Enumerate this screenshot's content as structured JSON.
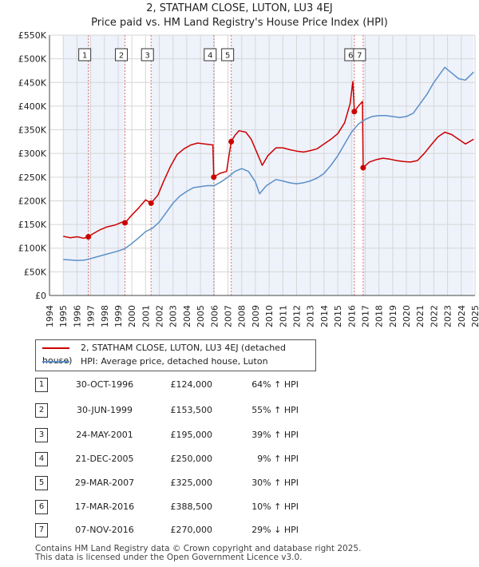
{
  "title": "2, STATHAM CLOSE, LUTON, LU3 4EJ",
  "subtitle": "Price paid vs. HM Land Registry's House Price Index (HPI)",
  "colors": {
    "property": "#cc0000",
    "hpi": "#5b8fc8",
    "sale_shade": "#dde6f3",
    "vline": "#e07070",
    "grid": "#d6d6d6",
    "plot_bg": "#eef2fa"
  },
  "legend": {
    "property_label": "2, STATHAM CLOSE, LUTON, LU3 4EJ (detached house)",
    "hpi_label": "HPI: Average price, detached house, Luton"
  },
  "sales": [
    {
      "num": "1",
      "date": "30-OCT-1996",
      "price": "£124,000",
      "hpi": "64% ↑ HPI"
    },
    {
      "num": "2",
      "date": "30-JUN-1999",
      "price": "£153,500",
      "hpi": "55% ↑ HPI"
    },
    {
      "num": "3",
      "date": "24-MAY-2001",
      "price": "£195,000",
      "hpi": "39% ↑ HPI"
    },
    {
      "num": "4",
      "date": "21-DEC-2005",
      "price": "£250,000",
      "hpi": "9% ↑ HPI"
    },
    {
      "num": "5",
      "date": "29-MAR-2007",
      "price": "£325,000",
      "hpi": "30% ↑ HPI"
    },
    {
      "num": "6",
      "date": "17-MAR-2016",
      "price": "£388,500",
      "hpi": "10% ↑ HPI"
    },
    {
      "num": "7",
      "date": "07-NOV-2016",
      "price": "£270,000",
      "hpi": "29% ↓ HPI"
    }
  ],
  "footer": {
    "line1": "Contains HM Land Registry data © Crown copyright and database right 2025.",
    "line2": "This data is licensed under the Open Government Licence v3.0."
  },
  "chart_data": {
    "type": "line",
    "title": "2, STATHAM CLOSE, LUTON, LU3 4EJ",
    "subtitle": "Price paid vs. HM Land Registry's House Price Index (HPI)",
    "xlabel": "",
    "ylabel": "",
    "xlim": [
      1994,
      2025
    ],
    "ylim": [
      0,
      550000
    ],
    "x_ticks": [
      1994,
      1995,
      1996,
      1997,
      1998,
      1999,
      2000,
      2001,
      2002,
      2003,
      2004,
      2005,
      2006,
      2007,
      2008,
      2009,
      2010,
      2011,
      2012,
      2013,
      2014,
      2015,
      2016,
      2017,
      2018,
      2019,
      2020,
      2021,
      2022,
      2023,
      2024,
      2025
    ],
    "x_tick_labels": [
      "1994",
      "1995",
      "1996",
      "1997",
      "1998",
      "1999",
      "2000",
      "2001",
      "2002",
      "2003",
      "2004",
      "2005",
      "2006",
      "2007",
      "2008",
      "2009",
      "2010",
      "2011",
      "2012",
      "2013",
      "2014",
      "2015",
      "2016",
      "2017",
      "2018",
      "2019",
      "2020",
      "2021",
      "2022",
      "2023",
      "2024",
      "2025"
    ],
    "y_ticks": [
      0,
      50000,
      100000,
      150000,
      200000,
      250000,
      300000,
      350000,
      400000,
      450000,
      500000,
      550000
    ],
    "y_tick_labels": [
      "£0",
      "£50K",
      "£100K",
      "£150K",
      "£200K",
      "£250K",
      "£300K",
      "£350K",
      "£400K",
      "£450K",
      "£500K",
      "£550K"
    ],
    "grid": true,
    "legend_position": "below chart",
    "data_range": [
      1995.0,
      2024.9
    ],
    "sale_markers": [
      {
        "label": "1",
        "x": 1996.83,
        "y": 124000
      },
      {
        "label": "2",
        "x": 1999.5,
        "y": 153500
      },
      {
        "label": "3",
        "x": 2001.4,
        "y": 195000
      },
      {
        "label": "4",
        "x": 2005.97,
        "y": 250000
      },
      {
        "label": "5",
        "x": 2007.24,
        "y": 325000
      },
      {
        "label": "6",
        "x": 2016.21,
        "y": 388500
      },
      {
        "label": "7",
        "x": 2016.85,
        "y": 270000
      }
    ],
    "series": [
      {
        "name": "2, STATHAM CLOSE, LUTON, LU3 4EJ (detached house)",
        "color": "#cc0000",
        "points": [
          [
            1995.0,
            125000
          ],
          [
            1995.5,
            122000
          ],
          [
            1996.0,
            124000
          ],
          [
            1996.5,
            121000
          ],
          [
            1996.83,
            124000
          ],
          [
            1997.2,
            131000
          ],
          [
            1997.7,
            139000
          ],
          [
            1998.2,
            145000
          ],
          [
            1998.8,
            149000
          ],
          [
            1999.3,
            155000
          ],
          [
            1999.5,
            153500
          ],
          [
            2000.0,
            170000
          ],
          [
            2000.5,
            185000
          ],
          [
            2001.0,
            202000
          ],
          [
            2001.4,
            195000
          ],
          [
            2001.9,
            212000
          ],
          [
            2002.3,
            240000
          ],
          [
            2002.8,
            272000
          ],
          [
            2003.3,
            298000
          ],
          [
            2003.8,
            310000
          ],
          [
            2004.3,
            318000
          ],
          [
            2004.8,
            322000
          ],
          [
            2005.3,
            320000
          ],
          [
            2005.9,
            318000
          ],
          [
            2005.97,
            250000
          ],
          [
            2006.4,
            258000
          ],
          [
            2006.9,
            262000
          ],
          [
            2007.24,
            325000
          ],
          [
            2007.5,
            338000
          ],
          [
            2007.8,
            348000
          ],
          [
            2008.3,
            345000
          ],
          [
            2008.7,
            330000
          ],
          [
            2009.2,
            296000
          ],
          [
            2009.5,
            275000
          ],
          [
            2009.9,
            295000
          ],
          [
            2010.5,
            312000
          ],
          [
            2011.0,
            312000
          ],
          [
            2011.5,
            308000
          ],
          [
            2012.0,
            305000
          ],
          [
            2012.5,
            303000
          ],
          [
            2013.0,
            306000
          ],
          [
            2013.5,
            310000
          ],
          [
            2014.0,
            320000
          ],
          [
            2014.5,
            330000
          ],
          [
            2015.0,
            342000
          ],
          [
            2015.5,
            365000
          ],
          [
            2015.9,
            405000
          ],
          [
            2016.1,
            452000
          ],
          [
            2016.21,
            388500
          ],
          [
            2016.5,
            400000
          ],
          [
            2016.8,
            410000
          ],
          [
            2016.85,
            270000
          ],
          [
            2017.3,
            282000
          ],
          [
            2017.8,
            287000
          ],
          [
            2018.3,
            290000
          ],
          [
            2018.8,
            288000
          ],
          [
            2019.3,
            285000
          ],
          [
            2019.8,
            283000
          ],
          [
            2020.3,
            282000
          ],
          [
            2020.8,
            285000
          ],
          [
            2021.3,
            300000
          ],
          [
            2021.8,
            318000
          ],
          [
            2022.3,
            335000
          ],
          [
            2022.8,
            345000
          ],
          [
            2023.3,
            340000
          ],
          [
            2023.8,
            330000
          ],
          [
            2024.3,
            320000
          ],
          [
            2024.9,
            330000
          ]
        ]
      },
      {
        "name": "HPI: Average price, detached house, Luton",
        "color": "#5b8fc8",
        "points": [
          [
            1995.0,
            76000
          ],
          [
            1995.5,
            75000
          ],
          [
            1996.0,
            74000
          ],
          [
            1996.5,
            74500
          ],
          [
            1997.0,
            78000
          ],
          [
            1997.5,
            82000
          ],
          [
            1998.0,
            86000
          ],
          [
            1998.5,
            90000
          ],
          [
            1999.0,
            94000
          ],
          [
            1999.5,
            99000
          ],
          [
            2000.0,
            110000
          ],
          [
            2000.5,
            122000
          ],
          [
            2001.0,
            135000
          ],
          [
            2001.5,
            142000
          ],
          [
            2002.0,
            155000
          ],
          [
            2002.5,
            175000
          ],
          [
            2003.0,
            195000
          ],
          [
            2003.5,
            210000
          ],
          [
            2004.0,
            220000
          ],
          [
            2004.5,
            228000
          ],
          [
            2005.0,
            230000
          ],
          [
            2005.5,
            232000
          ],
          [
            2006.0,
            232000
          ],
          [
            2006.5,
            240000
          ],
          [
            2007.0,
            250000
          ],
          [
            2007.5,
            262000
          ],
          [
            2008.0,
            268000
          ],
          [
            2008.5,
            262000
          ],
          [
            2009.0,
            240000
          ],
          [
            2009.3,
            215000
          ],
          [
            2009.8,
            232000
          ],
          [
            2010.5,
            245000
          ],
          [
            2011.0,
            242000
          ],
          [
            2011.5,
            238000
          ],
          [
            2012.0,
            236000
          ],
          [
            2012.5,
            238000
          ],
          [
            2013.0,
            242000
          ],
          [
            2013.5,
            248000
          ],
          [
            2014.0,
            258000
          ],
          [
            2014.5,
            275000
          ],
          [
            2015.0,
            295000
          ],
          [
            2015.5,
            320000
          ],
          [
            2016.0,
            345000
          ],
          [
            2016.5,
            362000
          ],
          [
            2017.0,
            372000
          ],
          [
            2017.5,
            378000
          ],
          [
            2018.0,
            380000
          ],
          [
            2018.5,
            380000
          ],
          [
            2019.0,
            378000
          ],
          [
            2019.5,
            376000
          ],
          [
            2020.0,
            378000
          ],
          [
            2020.5,
            385000
          ],
          [
            2021.0,
            405000
          ],
          [
            2021.5,
            425000
          ],
          [
            2022.0,
            450000
          ],
          [
            2022.5,
            470000
          ],
          [
            2022.8,
            482000
          ],
          [
            2023.3,
            470000
          ],
          [
            2023.8,
            458000
          ],
          [
            2024.3,
            455000
          ],
          [
            2024.9,
            472000
          ]
        ]
      }
    ]
  }
}
